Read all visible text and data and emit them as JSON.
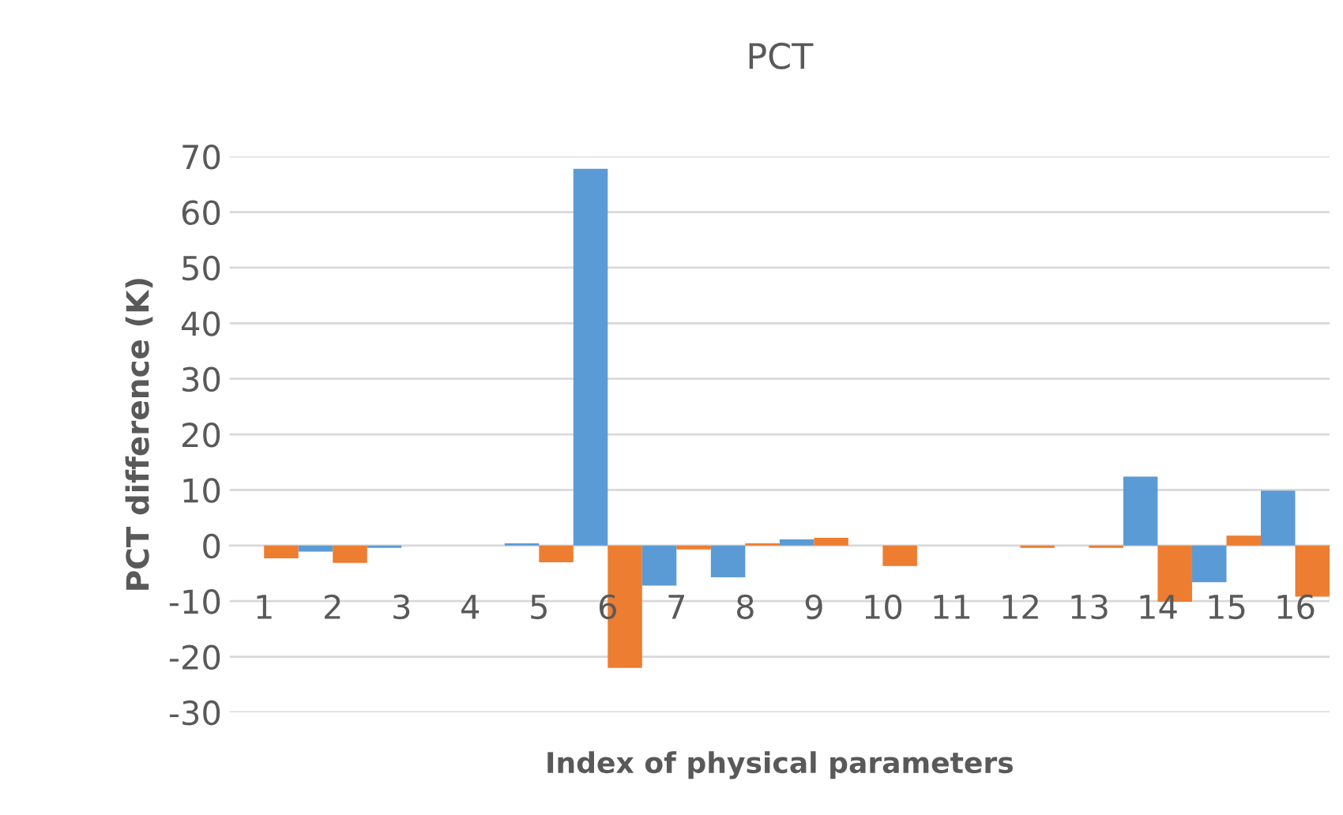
{
  "chart_data": {
    "type": "bar",
    "title": "PCT",
    "xlabel": "Index of physical parameters",
    "ylabel": "PCT difference (K)",
    "categories": [
      "1",
      "2",
      "3",
      "4",
      "5",
      "6",
      "7",
      "8",
      "9",
      "10",
      "11",
      "12",
      "13",
      "14",
      "15",
      "16"
    ],
    "series": [
      {
        "color": "#5b9bd5",
        "values": [
          0,
          -1.1,
          -0.4,
          0,
          0.4,
          67.8,
          -7.2,
          -5.7,
          1.1,
          0,
          0,
          0,
          0,
          12.4,
          -6.6,
          9.9
        ]
      },
      {
        "color": "#ed7d31",
        "values": [
          -2.3,
          -3.1,
          0,
          0,
          -3.0,
          -22,
          -0.7,
          0.4,
          1.4,
          -3.7,
          0,
          -0.4,
          -0.4,
          -10.1,
          1.8,
          -9.2
        ]
      }
    ],
    "ylim": [
      -30,
      70
    ],
    "yticks": [
      -30,
      -20,
      -10,
      0,
      10,
      20,
      30,
      40,
      50,
      60,
      70
    ],
    "grid": "y",
    "legend": false
  }
}
